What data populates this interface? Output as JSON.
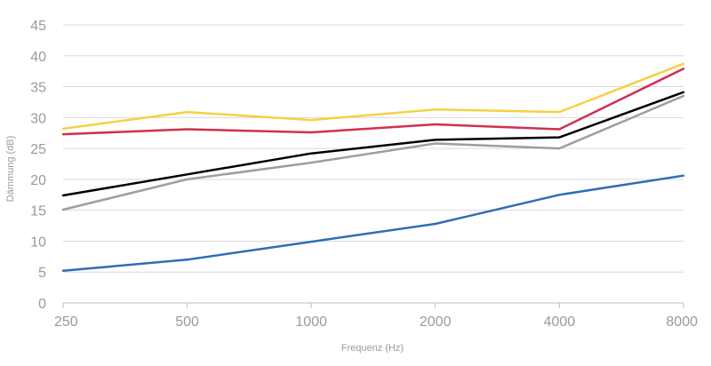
{
  "chart_data": {
    "type": "line",
    "title": "",
    "xlabel": "Frequenz (Hz)",
    "ylabel": "Dämmung (dB)",
    "categories": [
      "250",
      "500",
      "1000",
      "2000",
      "4000",
      "8000"
    ],
    "ylim": [
      0,
      45
    ],
    "yticks": [
      0,
      5,
      10,
      15,
      20,
      25,
      30,
      35,
      40,
      45
    ],
    "grid": "horizontal",
    "legend": "none",
    "series": [
      {
        "color": "#f5d142",
        "values": [
          28.2,
          30.9,
          29.6,
          31.3,
          30.9,
          38.7
        ]
      },
      {
        "color": "#d0304f",
        "values": [
          27.3,
          28.1,
          27.6,
          28.9,
          28.1,
          37.9
        ]
      },
      {
        "color": "#000000",
        "values": [
          17.4,
          20.8,
          24.2,
          26.4,
          26.8,
          34.1
        ]
      },
      {
        "color": "#9e9e9e",
        "values": [
          15.1,
          20.0,
          22.7,
          25.8,
          25.0,
          33.5
        ]
      },
      {
        "color": "#2f6db5",
        "values": [
          5.2,
          7.0,
          9.9,
          12.8,
          17.5,
          20.6
        ]
      }
    ]
  }
}
